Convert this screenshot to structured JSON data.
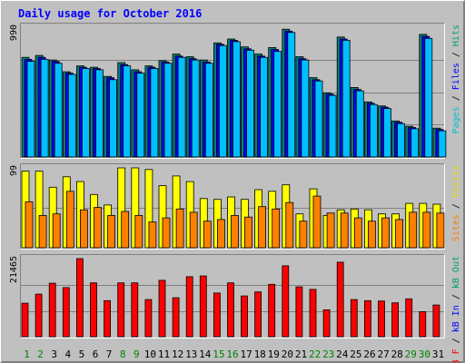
{
  "chart_data": {
    "title": "Daily usage for October 2016",
    "days": [
      "1",
      "2",
      "3",
      "4",
      "5",
      "6",
      "7",
      "8",
      "9",
      "10",
      "11",
      "12",
      "13",
      "14",
      "15",
      "16",
      "17",
      "18",
      "19",
      "20",
      "21",
      "22",
      "23",
      "24",
      "25",
      "26",
      "27",
      "28",
      "29",
      "30",
      "31"
    ],
    "weekend_days": [
      "1",
      "2",
      "8",
      "9",
      "15",
      "16",
      "22",
      "23",
      "29",
      "30"
    ],
    "panels": [
      {
        "type": "bar",
        "max_label": "990",
        "ylim": [
          0,
          990
        ],
        "axis_label_parts": [
          {
            "text": "Pages",
            "color": "#00c0d0"
          },
          {
            "text": " / ",
            "color": "#000000"
          },
          {
            "text": "Files",
            "color": "#0000ff"
          },
          {
            "text": " / ",
            "color": "#000000"
          },
          {
            "text": "Hits",
            "color": "#00a070"
          }
        ],
        "series": [
          {
            "name": "Hits",
            "color": "#008080",
            "values": [
              760,
              775,
              740,
              650,
              695,
              685,
              615,
              720,
              665,
              695,
              735,
              785,
              765,
              740,
              870,
              900,
              840,
              785,
              835,
              975,
              765,
              605,
              490,
              915,
              530,
              420,
              390,
              275,
              235,
              935,
              220
            ]
          },
          {
            "name": "Files",
            "color": "#0000ff",
            "values": [
              745,
              760,
              730,
              640,
              685,
              675,
              605,
              705,
              650,
              685,
              725,
              770,
              750,
              725,
              860,
              890,
              825,
              770,
              820,
              960,
              750,
              590,
              480,
              900,
              515,
              410,
              380,
              265,
              225,
              920,
              210
            ]
          },
          {
            "name": "Pages",
            "color": "#00bfff",
            "values": [
              730,
              745,
              715,
              630,
              675,
              665,
              590,
              695,
              640,
              675,
              715,
              760,
              740,
              715,
              850,
              880,
              815,
              760,
              805,
              950,
              740,
              580,
              470,
              890,
              505,
              400,
              370,
              255,
              215,
              905,
              200
            ]
          }
        ]
      },
      {
        "type": "bar",
        "max_label": "99",
        "ylim": [
          0,
          99
        ],
        "axis_label_parts": [
          {
            "text": "Sites",
            "color": "#ff8000"
          },
          {
            "text": " / ",
            "color": "#000000"
          },
          {
            "text": "Visits",
            "color": "#e0e000"
          }
        ],
        "series": [
          {
            "name": "Visits",
            "color": "#ffff00",
            "values": [
              95,
              95,
              75,
              88,
              82,
              66,
              53,
              99,
              99,
              97,
              77,
              89,
              82,
              61,
              60,
              63,
              60,
              72,
              70,
              78,
              42,
              73,
              40,
              47,
              48,
              47,
              42,
              42,
              55,
              55,
              54
            ]
          },
          {
            "name": "Sites",
            "color": "#ff8000",
            "values": [
              57,
              40,
              42,
              70,
              47,
              50,
              40,
              45,
              40,
              32,
              37,
              48,
              44,
              33,
              35,
              40,
              38,
              51,
              48,
              56,
              33,
              64,
              43,
              43,
              37,
              33,
              37,
              35,
              44,
              44,
              43
            ]
          }
        ]
      },
      {
        "type": "bar",
        "max_label": "21465",
        "ylim": [
          0,
          21465
        ],
        "axis_label_parts": [
          {
            "text": "kB F",
            "color": "#ff0000"
          },
          {
            "text": " / ",
            "color": "#000000"
          },
          {
            "text": "kB In",
            "color": "#0000ff"
          },
          {
            "text": " / ",
            "color": "#000000"
          },
          {
            "text": "kB Out",
            "color": "#00a070"
          }
        ],
        "series": [
          {
            "name": "kB F",
            "color": "#ff0000",
            "values": [
              9200,
              11700,
              14700,
              13500,
              21465,
              14800,
              9900,
              14800,
              14800,
              10200,
              15500,
              10700,
              16500,
              16700,
              12000,
              14800,
              11200,
              12300,
              14400,
              19500,
              13700,
              13000,
              7400,
              20500,
              10200,
              9900,
              9800,
              9300,
              10400,
              6900,
              8700
            ]
          }
        ]
      }
    ]
  }
}
